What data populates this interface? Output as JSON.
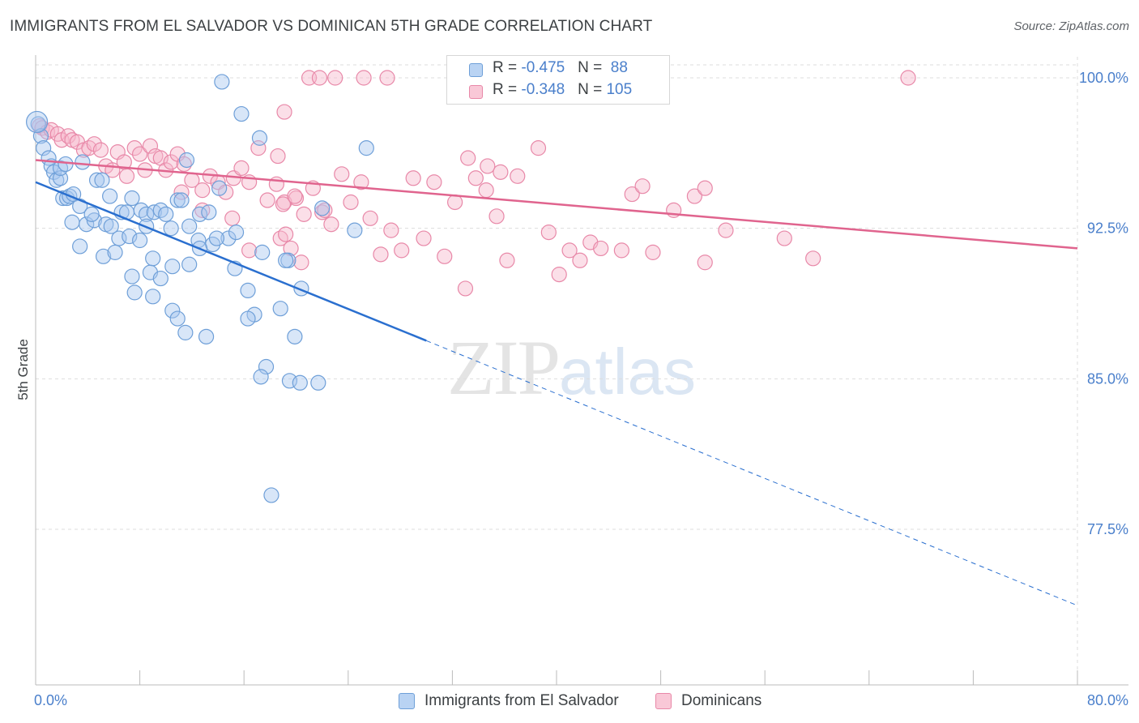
{
  "title": "IMMIGRANTS FROM EL SALVADOR VS DOMINICAN 5TH GRADE CORRELATION CHART",
  "source": "Source: ZipAtlas.com",
  "watermark": {
    "zip": "ZIP",
    "atlas": "atlas"
  },
  "legend_top": [
    {
      "r_label": "R = ",
      "r_value": "-0.475",
      "n_label": "N = ",
      "n_value": "88"
    },
    {
      "r_label": "R = ",
      "r_value": "-0.348",
      "n_label": "N = ",
      "n_value": "105"
    }
  ],
  "colors": {
    "series1_fill": "#a8c8f0",
    "series1_stroke": "#6e9fd8",
    "series1_line": "#2a6fcf",
    "series2_fill": "#f7b9cc",
    "series2_stroke": "#e888a8",
    "series2_line": "#e0648e",
    "tick_text": "#4a7fcb",
    "grid": "#dddddd"
  },
  "chart_data": {
    "type": "scatter",
    "title": "IMMIGRANTS FROM EL SALVADOR VS DOMINICAN 5TH GRADE CORRELATION CHART",
    "xlabel": "",
    "ylabel": "5th Grade",
    "xlim": [
      0,
      80
    ],
    "ylim": [
      71.5,
      101.5
    ],
    "x_tick_labels": [
      "0.0%",
      "80.0%"
    ],
    "y_ticks": [
      77.5,
      85.0,
      92.5,
      100.0
    ],
    "y_tick_labels": [
      "77.5%",
      "85.0%",
      "92.5%",
      "100.0%"
    ],
    "grid": true,
    "legend": "bottom",
    "series": [
      {
        "name": "Immigrants from El Salvador",
        "R": -0.475,
        "N": 88,
        "trend": {
          "x0": 0.0,
          "y0": 94.8,
          "x1": 30.0,
          "y1": 86.9,
          "dash_to_x": 80.0,
          "dash_to_y": 73.7
        },
        "points": [
          [
            0.2,
            97.7
          ],
          [
            0.4,
            97.1
          ],
          [
            0.6,
            96.5
          ],
          [
            1.0,
            96.0
          ],
          [
            1.2,
            95.6
          ],
          [
            1.4,
            95.3
          ],
          [
            1.6,
            94.9
          ],
          [
            1.9,
            95.0
          ],
          [
            2.1,
            94.0
          ],
          [
            2.4,
            94.0
          ],
          [
            2.6,
            94.1
          ],
          [
            2.9,
            94.2
          ],
          [
            3.4,
            93.6
          ],
          [
            3.6,
            95.8
          ],
          [
            1.9,
            95.5
          ],
          [
            2.3,
            95.7
          ],
          [
            4.7,
            94.9
          ],
          [
            5.1,
            94.9
          ],
          [
            5.7,
            94.1
          ],
          [
            6.6,
            93.3
          ],
          [
            7.0,
            93.3
          ],
          [
            7.4,
            94.0
          ],
          [
            8.1,
            93.4
          ],
          [
            8.5,
            93.2
          ],
          [
            9.1,
            93.3
          ],
          [
            9.6,
            93.4
          ],
          [
            10.0,
            93.2
          ],
          [
            10.9,
            93.9
          ],
          [
            11.2,
            93.9
          ],
          [
            11.6,
            95.9
          ],
          [
            12.6,
            93.2
          ],
          [
            13.3,
            93.3
          ],
          [
            2.8,
            92.8
          ],
          [
            3.9,
            92.7
          ],
          [
            4.5,
            92.9
          ],
          [
            5.4,
            92.7
          ],
          [
            5.8,
            92.6
          ],
          [
            6.4,
            92.0
          ],
          [
            7.2,
            92.1
          ],
          [
            8.0,
            91.9
          ],
          [
            10.4,
            92.5
          ],
          [
            11.8,
            92.6
          ],
          [
            12.5,
            91.9
          ],
          [
            13.6,
            91.7
          ],
          [
            14.8,
            92.0
          ],
          [
            15.4,
            92.3
          ],
          [
            17.4,
            91.3
          ],
          [
            19.4,
            90.9
          ],
          [
            3.4,
            91.6
          ],
          [
            5.2,
            91.1
          ],
          [
            6.1,
            91.3
          ],
          [
            7.4,
            90.1
          ],
          [
            8.8,
            90.3
          ],
          [
            9.6,
            90.0
          ],
          [
            10.5,
            90.6
          ],
          [
            11.8,
            90.7
          ],
          [
            15.3,
            90.5
          ],
          [
            19.2,
            90.9
          ],
          [
            20.4,
            89.5
          ],
          [
            7.6,
            89.3
          ],
          [
            9.0,
            89.1
          ],
          [
            10.5,
            88.4
          ],
          [
            16.3,
            89.4
          ],
          [
            16.8,
            88.2
          ],
          [
            18.8,
            88.5
          ],
          [
            10.9,
            88.0
          ],
          [
            11.5,
            87.3
          ],
          [
            13.1,
            87.1
          ],
          [
            17.7,
            85.6
          ],
          [
            17.3,
            85.1
          ],
          [
            19.5,
            84.9
          ],
          [
            20.3,
            84.8
          ],
          [
            21.7,
            84.8
          ],
          [
            24.5,
            92.4
          ],
          [
            25.4,
            96.5
          ],
          [
            17.2,
            97.0
          ],
          [
            14.3,
            99.8
          ],
          [
            15.8,
            98.2
          ],
          [
            22.0,
            93.5
          ],
          [
            14.1,
            94.5
          ],
          [
            8.5,
            92.6
          ],
          [
            4.3,
            93.2
          ],
          [
            12.6,
            91.5
          ],
          [
            19.9,
            87.1
          ],
          [
            18.1,
            79.2
          ],
          [
            16.3,
            88.0
          ],
          [
            9.0,
            91.0
          ],
          [
            13.9,
            92.0
          ]
        ]
      },
      {
        "name": "Dominicans",
        "R": -0.348,
        "N": 105,
        "trend": {
          "x0": 0.0,
          "y0": 95.9,
          "x1": 80.0,
          "y1": 91.5
        },
        "points": [
          [
            0.3,
            97.6
          ],
          [
            0.5,
            97.5
          ],
          [
            0.9,
            97.3
          ],
          [
            1.2,
            97.4
          ],
          [
            1.7,
            97.2
          ],
          [
            2.0,
            96.9
          ],
          [
            2.5,
            97.1
          ],
          [
            2.8,
            96.9
          ],
          [
            3.2,
            96.8
          ],
          [
            3.7,
            96.4
          ],
          [
            4.1,
            96.5
          ],
          [
            4.5,
            96.7
          ],
          [
            5.0,
            96.4
          ],
          [
            5.4,
            95.6
          ],
          [
            5.9,
            95.4
          ],
          [
            6.3,
            96.3
          ],
          [
            6.8,
            95.8
          ],
          [
            7.6,
            96.5
          ],
          [
            8.0,
            96.2
          ],
          [
            8.4,
            95.4
          ],
          [
            8.8,
            96.6
          ],
          [
            9.2,
            96.1
          ],
          [
            9.6,
            96.0
          ],
          [
            10.0,
            95.4
          ],
          [
            10.4,
            95.8
          ],
          [
            10.9,
            96.2
          ],
          [
            11.4,
            95.7
          ],
          [
            12.0,
            94.9
          ],
          [
            12.8,
            94.4
          ],
          [
            13.4,
            95.1
          ],
          [
            14.0,
            94.8
          ],
          [
            14.6,
            94.3
          ],
          [
            15.2,
            95.0
          ],
          [
            15.8,
            95.5
          ],
          [
            16.4,
            94.8
          ],
          [
            17.1,
            96.5
          ],
          [
            17.8,
            93.9
          ],
          [
            18.5,
            94.7
          ],
          [
            19.1,
            93.8
          ],
          [
            20.0,
            94.0
          ],
          [
            20.6,
            93.2
          ],
          [
            21.3,
            94.5
          ],
          [
            22.0,
            93.3
          ],
          [
            22.7,
            92.7
          ],
          [
            23.5,
            95.2
          ],
          [
            24.2,
            93.8
          ],
          [
            25.0,
            94.8
          ],
          [
            25.7,
            93.0
          ],
          [
            26.5,
            91.2
          ],
          [
            27.3,
            92.4
          ],
          [
            28.1,
            91.4
          ],
          [
            29.0,
            95.0
          ],
          [
            29.8,
            92.0
          ],
          [
            30.6,
            94.8
          ],
          [
            31.4,
            91.1
          ],
          [
            32.2,
            93.8
          ],
          [
            33.0,
            89.5
          ],
          [
            33.8,
            95.0
          ],
          [
            34.6,
            94.4
          ],
          [
            35.4,
            93.1
          ],
          [
            36.2,
            90.9
          ],
          [
            37.0,
            95.1
          ],
          [
            38.6,
            96.5
          ],
          [
            39.4,
            92.3
          ],
          [
            40.2,
            90.2
          ],
          [
            41.0,
            91.4
          ],
          [
            41.8,
            90.9
          ],
          [
            42.6,
            91.8
          ],
          [
            43.4,
            91.5
          ],
          [
            45.0,
            91.4
          ],
          [
            45.8,
            94.2
          ],
          [
            46.6,
            94.6
          ],
          [
            47.4,
            91.3
          ],
          [
            49.0,
            93.4
          ],
          [
            50.6,
            94.1
          ],
          [
            51.4,
            94.5
          ],
          [
            51.4,
            90.8
          ],
          [
            53.0,
            92.4
          ],
          [
            57.5,
            92.0
          ],
          [
            59.7,
            91.0
          ],
          [
            16.4,
            91.4
          ],
          [
            18.8,
            92.0
          ],
          [
            19.0,
            93.7
          ],
          [
            19.2,
            92.2
          ],
          [
            19.6,
            91.5
          ],
          [
            20.4,
            90.8
          ],
          [
            19.1,
            98.3
          ],
          [
            18.6,
            96.1
          ],
          [
            21.0,
            100.0
          ],
          [
            21.8,
            100.0
          ],
          [
            23.0,
            100.0
          ],
          [
            25.2,
            100.0
          ],
          [
            27.0,
            100.0
          ],
          [
            33.0,
            100.0
          ],
          [
            36.0,
            100.0
          ],
          [
            67.0,
            100.0
          ],
          [
            35.7,
            95.3
          ],
          [
            34.7,
            95.6
          ],
          [
            12.8,
            93.4
          ],
          [
            11.2,
            94.3
          ],
          [
            7.0,
            95.1
          ],
          [
            15.1,
            93.0
          ],
          [
            22.2,
            93.4
          ],
          [
            19.9,
            94.1
          ],
          [
            33.2,
            96.0
          ]
        ]
      }
    ]
  },
  "legend_bottom": [
    {
      "label": "Immigrants from El Salvador"
    },
    {
      "label": "Dominicans"
    }
  ]
}
